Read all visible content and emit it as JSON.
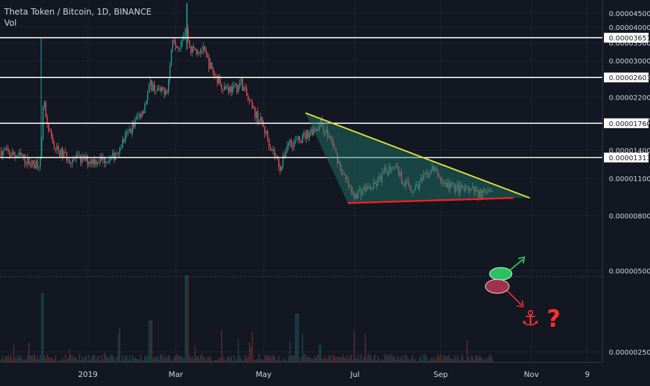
{
  "header": {
    "symbol_line": "Theta Token / Bitcoin, 1D, BINANCE",
    "volume_label": "Vol"
  },
  "colors": {
    "background": "#131722",
    "up": "#26a69a",
    "down": "#ef5350",
    "horizontal_line": "#ffffff",
    "trendline_upper": "#e0e034",
    "trendline_lower": "#ff1f1f",
    "triangle_fill": "#1f7d6e",
    "breakout_up": "#2fe06a",
    "breakout_down": "#ff2f2f"
  },
  "chart_data": {
    "type": "candlestick",
    "title": "Theta Token / Bitcoin, 1D, BINANCE",
    "price_axis": {
      "scale": "log",
      "tick_labels": [
        "0.00004500",
        "0.00004000",
        "0.00003500",
        "0.00003000",
        "0.00002600",
        "0.00002200",
        "0.00001800",
        "0.00001400",
        "0.00001100",
        "0.00000800",
        "0.00000500",
        "0.00000250"
      ],
      "ticks": [
        4.5e-05,
        4e-05,
        3.5e-05,
        3e-05,
        2.6e-05,
        2.2e-05,
        1.8e-05,
        1.4e-05,
        1.1e-05,
        8e-06,
        5e-06,
        2.5e-06
      ]
    },
    "time_axis": {
      "labels": [
        "2019",
        "Mar",
        "May",
        "Jul",
        "Sep",
        "Nov",
        "9"
      ]
    },
    "horizontal_levels": [
      {
        "label": "0.00003651",
        "value": 3.651e-05
      },
      {
        "label": "0.00002601",
        "value": 2.601e-05
      },
      {
        "label": "0.00001760",
        "value": 1.76e-05
      },
      {
        "label": "0.00001313",
        "value": 1.313e-05
      }
    ],
    "descending_triangle": {
      "upper_trendline": [
        [
          0.47,
          1.92e-05
        ],
        [
          0.815,
          9.3e-06
        ]
      ],
      "lower_trendline": [
        [
          0.535,
          8.9e-06
        ],
        [
          0.79,
          9.3e-06
        ]
      ]
    },
    "annotations": {
      "anchor_symbol": "⚓",
      "question_mark": "?"
    }
  }
}
